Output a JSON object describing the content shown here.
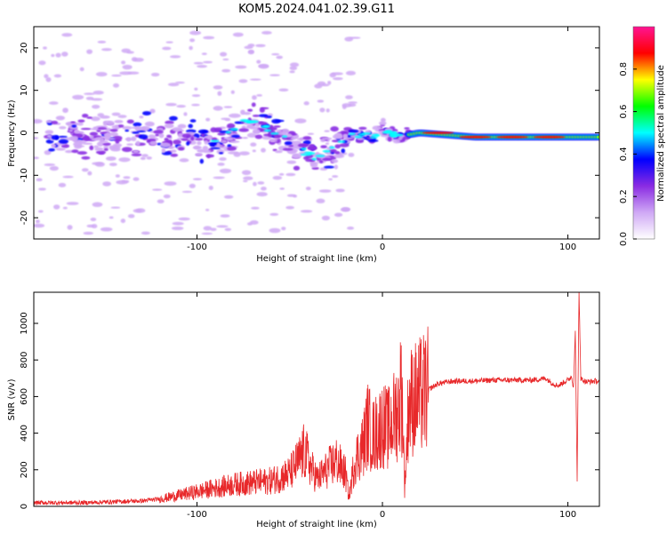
{
  "title": "KOM5.2024.041.02.39.G11",
  "chart_data": [
    {
      "type": "heatmap",
      "xlabel": "Height of straight line (km)",
      "ylabel": "Frequency (Hz)",
      "xlim": [
        -188,
        117
      ],
      "ylim": [
        -25,
        25
      ],
      "x_ticks": [
        -100,
        0,
        100
      ],
      "y_ticks": [
        -20,
        -10,
        0,
        10,
        20
      ],
      "colorbar": {
        "label": "Normalized spectral amplitude",
        "range": [
          0,
          1
        ],
        "ticks": [
          0.0,
          0.2,
          0.4,
          0.6,
          0.8
        ],
        "colors": [
          "#ffffff",
          "#cfa8f5",
          "#8a2be2",
          "#0000ff",
          "#00ffff",
          "#00ff00",
          "#ffff00",
          "#ff0000",
          "#ff1493"
        ]
      },
      "features": {
        "trace": [
          [
            -100,
            -4
          ],
          [
            -85,
            -1
          ],
          [
            -72,
            3
          ],
          [
            -60,
            1
          ],
          [
            -48,
            -3
          ],
          [
            -35,
            -6
          ],
          [
            -25,
            -3
          ],
          [
            -15,
            0
          ],
          [
            -5,
            -1
          ],
          [
            0,
            1
          ],
          [
            8,
            -1
          ],
          [
            20,
            0
          ],
          [
            50,
            -1
          ],
          [
            80,
            -1
          ],
          [
            100,
            -1
          ],
          [
            117,
            -1
          ]
        ],
        "strong_segment": [
          15,
          117,
          0
        ],
        "hot_spots": [
          [
            30,
            0
          ],
          [
            50,
            -1
          ],
          [
            70,
            -1
          ],
          [
            90,
            -1
          ]
        ]
      }
    },
    {
      "type": "line",
      "xlabel": "Height of straight line (km)",
      "ylabel": "SNR (v/v)",
      "xlim": [
        -188,
        117
      ],
      "ylim": [
        0,
        1170
      ],
      "x_ticks": [
        -100,
        0,
        100
      ],
      "y_ticks": [
        0,
        200,
        400,
        600,
        800,
        1000
      ],
      "color": "#e8282a",
      "series": [
        {
          "x": [
            -188,
            -175,
            -160,
            -145,
            -130,
            -120,
            -110,
            -100,
            -90,
            -80,
            -70,
            -60,
            -50,
            -45,
            -42,
            -38,
            -35,
            -30,
            -25,
            -20,
            -18,
            -15,
            -12,
            -10,
            -8,
            -5,
            -2,
            0,
            3,
            6,
            9,
            10,
            11,
            12,
            13,
            14,
            16,
            20,
            25,
            30,
            35,
            40,
            50,
            60,
            70,
            80,
            85,
            88,
            92,
            95,
            98,
            100,
            101,
            102,
            103,
            104,
            105,
            106,
            107,
            108,
            110,
            115,
            117
          ],
          "y": [
            20,
            20,
            20,
            25,
            30,
            40,
            60,
            80,
            100,
            120,
            130,
            140,
            180,
            250,
            300,
            200,
            150,
            200,
            250,
            180,
            50,
            250,
            300,
            350,
            450,
            380,
            420,
            450,
            420,
            480,
            550,
            650,
            500,
            100,
            300,
            550,
            580,
            600,
            640,
            670,
            680,
            685,
            685,
            690,
            690,
            690,
            695,
            700,
            670,
            660,
            680,
            690,
            700,
            710,
            650,
            950,
            150,
            1170,
            700,
            690,
            680,
            685,
            680
          ]
        }
      ]
    }
  ]
}
